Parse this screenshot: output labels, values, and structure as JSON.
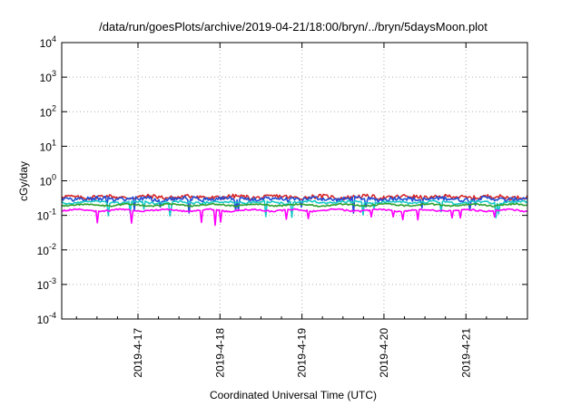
{
  "chart_data": {
    "type": "line",
    "title": "/data/run/goesPlots/archive/2019-04-21/18:00/bryn/../bryn/5daysMoon.plot",
    "xlabel": "Coordinated Universal Time (UTC)",
    "ylabel": "cGy/day",
    "yscale": "log",
    "ylim": [
      0.0001,
      10000
    ],
    "y_ticks": [
      {
        "base": "10",
        "exp": "-4"
      },
      {
        "base": "10",
        "exp": "-3"
      },
      {
        "base": "10",
        "exp": "-2"
      },
      {
        "base": "10",
        "exp": "-1"
      },
      {
        "base": "10",
        "exp": "0"
      },
      {
        "base": "10",
        "exp": "1"
      },
      {
        "base": "10",
        "exp": "2"
      },
      {
        "base": "10",
        "exp": "3"
      },
      {
        "base": "10",
        "exp": "4"
      }
    ],
    "x_ticks": [
      "2019-4-17",
      "2019-4-18",
      "2019-4-19",
      "2019-4-20",
      "2019-4-21"
    ],
    "xlim_days": [
      -0.93,
      4.75
    ],
    "grid": true,
    "series": [
      {
        "color": "#d62728",
        "base": 0.34,
        "spread": 0.14,
        "dips": false
      },
      {
        "color": "#1f4fd6",
        "base": 0.3,
        "spread": 0.14,
        "dips": true
      },
      {
        "color": "#17c9c9",
        "base": 0.24,
        "spread": 0.08,
        "dips": true
      },
      {
        "color": "#2ca02c",
        "base": 0.2,
        "spread": 0.05,
        "dips": false
      },
      {
        "color": "#ff00ff",
        "base": 0.14,
        "spread": 0.05,
        "dips": true
      }
    ]
  }
}
